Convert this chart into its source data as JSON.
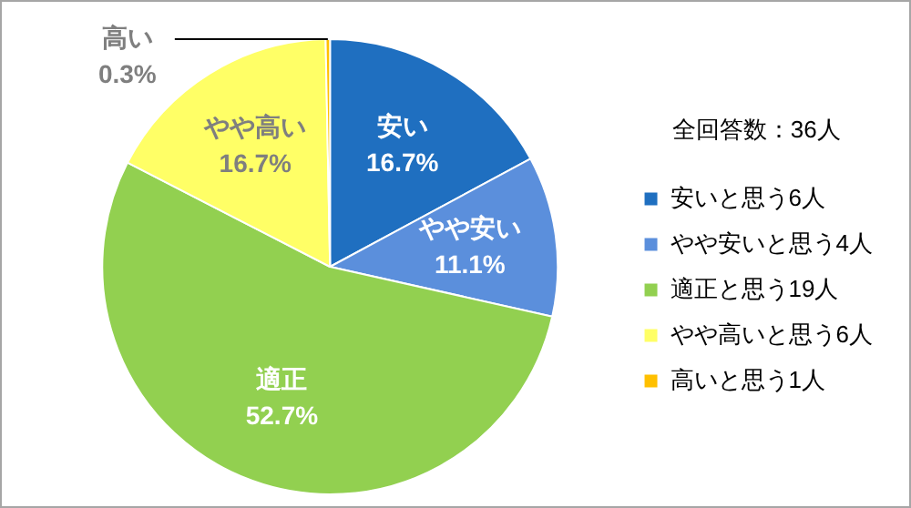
{
  "chart_data": {
    "type": "pie",
    "legend_title": "全回答数：36人",
    "legend": "right",
    "categories": [
      "安いと思う6人",
      "やや安いと思う4人",
      "適正と思う19人",
      "やや高いと思う6人",
      "高いと思う1人"
    ],
    "values": [
      16.7,
      11.1,
      52.7,
      16.7,
      0.3
    ],
    "colors": [
      "#1f6fc0",
      "#5b8fdc",
      "#92d050",
      "#ffff66",
      "#ffc000"
    ],
    "value_labels": [
      "16.7%",
      "11.1%",
      "52.7%",
      "16.7%",
      "0.3%"
    ],
    "annotations": [
      "安い",
      "やや安い",
      "適正",
      "やや高い",
      "高い"
    ]
  }
}
